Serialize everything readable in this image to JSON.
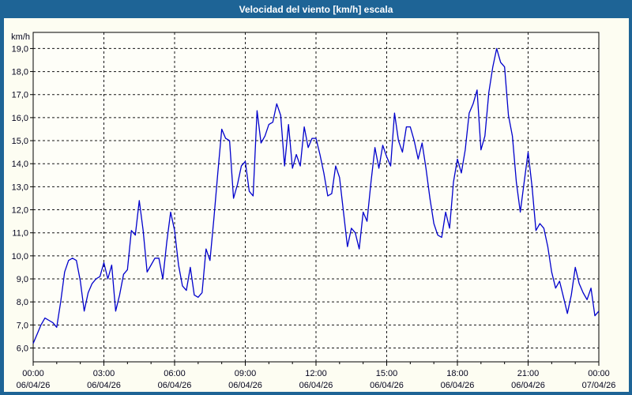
{
  "window": {
    "title": "Velocidad del viento [km/h] escala"
  },
  "colors": {
    "titlebar_bg": "#1e6496",
    "frame_bg": "#1e6496",
    "chart_bg": "#fdfdf2",
    "plot_bg": "#fefef8",
    "line": "#0000cc",
    "grid": "#161616",
    "axis": "#000000",
    "label_text": "#05051e",
    "title_text": "#ffffff"
  },
  "chart_data": {
    "type": "line",
    "title": "Velocidad del viento [km/h] escala",
    "ylabel": "km/h",
    "xlabel": "",
    "grid": "dashed",
    "legend_position": "none",
    "ylim": [
      5.4,
      19.7
    ],
    "xlim_hours": [
      0,
      24
    ],
    "y_ticks": [
      {
        "value": 6,
        "label": "6,0"
      },
      {
        "value": 7,
        "label": "7,0"
      },
      {
        "value": 8,
        "label": "8,0"
      },
      {
        "value": 9,
        "label": "9,0"
      },
      {
        "value": 10,
        "label": "10,0"
      },
      {
        "value": 11,
        "label": "11,0"
      },
      {
        "value": 12,
        "label": "12,0"
      },
      {
        "value": 13,
        "label": "13,0"
      },
      {
        "value": 14,
        "label": "14,0"
      },
      {
        "value": 15,
        "label": "15,0"
      },
      {
        "value": 16,
        "label": "16,0"
      },
      {
        "value": 17,
        "label": "17,0"
      },
      {
        "value": 18,
        "label": "18,0"
      },
      {
        "value": 19,
        "label": "19,0"
      }
    ],
    "x_major_ticks": [
      {
        "hour": 0,
        "time": "00:00",
        "date": "06/04/26"
      },
      {
        "hour": 3,
        "time": "03:00",
        "date": "06/04/26"
      },
      {
        "hour": 6,
        "time": "06:00",
        "date": "06/04/26"
      },
      {
        "hour": 9,
        "time": "09:00",
        "date": "06/04/26"
      },
      {
        "hour": 12,
        "time": "12:00",
        "date": "06/04/26"
      },
      {
        "hour": 15,
        "time": "15:00",
        "date": "06/04/26"
      },
      {
        "hour": 18,
        "time": "18:00",
        "date": "06/04/26"
      },
      {
        "hour": 21,
        "time": "21:00",
        "date": "06/04/26"
      },
      {
        "hour": 24,
        "time": "00:00",
        "date": "07/04/26"
      }
    ],
    "x_minor_tick_interval_hours": 1,
    "series": [
      {
        "name": "Velocidad del viento",
        "unit": "km/h",
        "x_start_hour": 0,
        "x_step_minutes": 10,
        "values": [
          6.2,
          6.6,
          7.0,
          7.3,
          7.2,
          7.1,
          6.9,
          8.0,
          9.3,
          9.8,
          9.9,
          9.8,
          8.9,
          7.6,
          8.4,
          8.8,
          9.0,
          9.1,
          9.7,
          9.0,
          9.6,
          7.6,
          8.3,
          9.2,
          9.4,
          11.1,
          10.9,
          12.4,
          11.1,
          9.3,
          9.6,
          9.9,
          9.9,
          9.0,
          10.6,
          11.9,
          11.1,
          9.6,
          8.7,
          8.5,
          9.5,
          8.3,
          8.2,
          8.4,
          10.3,
          9.8,
          11.6,
          13.6,
          15.5,
          15.1,
          15.0,
          12.5,
          13.1,
          13.9,
          14.1,
          12.8,
          12.6,
          16.3,
          14.9,
          15.2,
          15.7,
          15.8,
          16.6,
          16.1,
          13.9,
          15.7,
          13.8,
          14.4,
          13.9,
          15.6,
          14.7,
          15.1,
          15.1,
          14.4,
          13.6,
          12.6,
          12.7,
          13.9,
          13.4,
          11.9,
          10.4,
          11.2,
          11.0,
          10.3,
          11.9,
          11.5,
          13.2,
          14.7,
          13.8,
          14.8,
          14.3,
          13.9,
          16.2,
          15.0,
          14.5,
          15.6,
          15.6,
          15.0,
          14.2,
          14.9,
          13.8,
          12.5,
          11.4,
          10.9,
          10.8,
          11.9,
          11.2,
          13.2,
          14.2,
          13.6,
          14.6,
          16.2,
          16.6,
          17.2,
          14.6,
          15.2,
          17.1,
          18.2,
          19.0,
          18.4,
          18.2,
          16.1,
          15.2,
          13.2,
          11.9,
          13.2,
          14.5,
          13.0,
          11.1,
          11.4,
          11.2,
          10.4,
          9.3,
          8.6,
          8.9,
          8.2,
          7.5,
          8.3,
          9.5,
          8.8,
          8.4,
          8.1,
          8.6,
          7.4,
          7.6
        ]
      }
    ]
  }
}
